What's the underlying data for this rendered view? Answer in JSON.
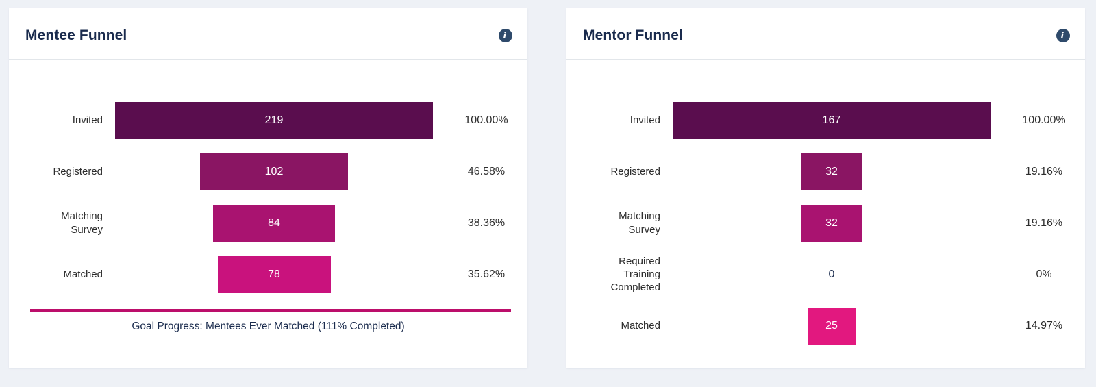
{
  "page": {
    "background": "#eef1f6",
    "card_background": "#ffffff",
    "title_color": "#1a2b4d",
    "info_icon_color": "#2e4a6b",
    "info_icon_glyph": "i"
  },
  "chart_data": [
    {
      "type": "funnel",
      "title": "Mentee Funnel",
      "categories": [
        "Invited",
        "Registered",
        "Matching Survey",
        "Matched"
      ],
      "values": [
        219,
        102,
        84,
        78
      ],
      "percentages": [
        "100.00%",
        "46.58%",
        "38.36%",
        "35.62%"
      ],
      "bar_colors": [
        "#5a0d4e",
        "#8a1563",
        "#a91370",
        "#c9127d"
      ],
      "value_label_position": "inside",
      "value_label_color": "#ffffff",
      "goal": {
        "text": "Goal Progress: Mentees Ever Matched (111% Completed)",
        "line_color": "#bc0e6b",
        "completed_fraction": 1.0
      }
    },
    {
      "type": "funnel",
      "title": "Mentor Funnel",
      "categories": [
        "Invited",
        "Registered",
        "Matching Survey",
        "Required Training Completed",
        "Matched"
      ],
      "values": [
        167,
        32,
        32,
        0,
        25
      ],
      "percentages": [
        "100.00%",
        "19.16%",
        "19.16%",
        "0%",
        "14.97%"
      ],
      "bar_colors": [
        "#5a0d4e",
        "#8a1563",
        "#a91370",
        "#c9127d",
        "#e2187f"
      ],
      "value_label_position": "inside",
      "value_label_color": "#ffffff",
      "goal": null
    }
  ]
}
